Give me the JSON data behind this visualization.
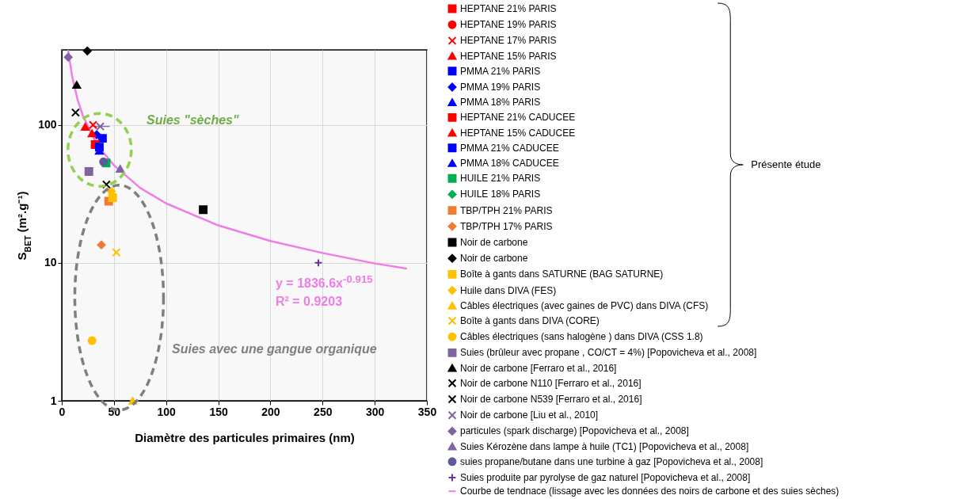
{
  "chart_data": {
    "type": "scatter",
    "xlabel": "Diamètre des particules primaires (nm)",
    "ylabel": "S$_{BET}$ (m².g⁻¹)",
    "xlim": [
      0,
      350
    ],
    "xticks": [
      0,
      50,
      100,
      150,
      200,
      250,
      300,
      350
    ],
    "ylim": [
      1,
      350
    ],
    "yticks": [
      1,
      10,
      100
    ],
    "log": "y",
    "grid": true,
    "legend": "right",
    "annotations": [
      "Suies \"sèches\"",
      "Suies avec une gangue organique",
      "y = 1836.6x$^{-0.915}$",
      "R² = 0.9203",
      "Présente étude"
    ],
    "series": [
      {
        "name": "HEPTANE 21% PARIS",
        "color": "#ff0000",
        "marker": "square",
        "x": [
          null
        ],
        "values": [
          null
        ]
      },
      {
        "name": "HEPTANE 19% PARIS",
        "color": "#ff0000",
        "marker": "circle",
        "x": [
          null
        ],
        "values": [
          null
        ]
      },
      {
        "name": "HEPTANE 17% PARIS",
        "color": "#ff0000",
        "marker": "cross",
        "x": [
          30
        ],
        "values": [
          100
        ]
      },
      {
        "name": "HEPTANE 15% PARIS",
        "color": "#ff0000",
        "marker": "triangle",
        "x": [
          22.5
        ],
        "values": [
          97
        ]
      },
      {
        "name": "PMMA 21% PARIS",
        "color": "#0000ff",
        "marker": "square",
        "x": [
          39
        ],
        "values": [
          80
        ]
      },
      {
        "name": "PMMA 19% PARIS",
        "color": "#0000ff",
        "marker": "diamond",
        "x": [
          33.5
        ],
        "values": [
          85
        ]
      },
      {
        "name": "PMMA 18% PARIS",
        "color": "#0000ff",
        "marker": "triangle",
        "x": [
          null
        ],
        "values": [
          null
        ]
      },
      {
        "name": "HEPTANE 21% CADUCEE",
        "color": "#ff0000",
        "marker": "square",
        "x": [
          32
        ],
        "values": [
          72
        ]
      },
      {
        "name": "HEPTANE 15% CADUCEE",
        "color": "#ff0000",
        "marker": "triangle",
        "x": [
          29
        ],
        "values": [
          87
        ]
      },
      {
        "name": "PMMA 21% CADUCEE",
        "color": "#0000ff",
        "marker": "square",
        "x": [
          36
        ],
        "values": [
          69
        ]
      },
      {
        "name": "PMMA 18% CADUCEE",
        "color": "#0000ff",
        "marker": "triangle",
        "x": [
          36
        ],
        "values": [
          65
        ]
      },
      {
        "name": "HUILE 21% PARIS",
        "color": "#00b050",
        "marker": "square",
        "x": [
          42.5
        ],
        "values": [
          53
        ]
      },
      {
        "name": "HUILE 18% PARIS",
        "color": "#00b050",
        "marker": "diamond",
        "x": [
          null
        ],
        "values": [
          null
        ]
      },
      {
        "name": "TBP/TPH 21% PARIS",
        "color": "#ed7d31",
        "marker": "square",
        "x": [
          45
        ],
        "values": [
          28
        ]
      },
      {
        "name": "TBP/TPH 17% PARIS",
        "color": "#ed7d31",
        "marker": "diamond",
        "x": [
          38
        ],
        "values": [
          13.5
        ]
      },
      {
        "name": "Noir de carbone",
        "color": "#000000",
        "marker": "square",
        "x": [
          135.6
        ],
        "values": [
          24.3
        ]
      },
      {
        "name": "Noir de carbone",
        "color": "#000000",
        "marker": "diamond",
        "x": [
          24.5
        ],
        "values": [
          344
        ]
      },
      {
        "name": "Boîte à gants dans SATURNE (BAG SATURNE)",
        "color": "#ffc000",
        "marker": "square",
        "x": [
          48.7
        ],
        "values": [
          29.7
        ]
      },
      {
        "name": "Huile dans DIVA (FES)",
        "color": "#ffc000",
        "marker": "diamond",
        "x": [
          47.5
        ],
        "values": [
          33
        ]
      },
      {
        "name": "Câbles électriques (avec gaines de PVC) dans DIVA (CFS)",
        "color": "#ffc000",
        "marker": "triangle",
        "x": [
          68
        ],
        "values": [
          1
        ]
      },
      {
        "name": "Boîte à gants dans DIVA (CORE)",
        "color": "#ffc000",
        "marker": "cross",
        "x": [
          52.3
        ],
        "values": [
          11.9
        ]
      },
      {
        "name": "Câbles électriques (sans halogène ) dans DIVA (CSS 1.8)",
        "color": "#ffc000",
        "marker": "circle",
        "x": [
          29
        ],
        "values": [
          2.73
        ]
      },
      {
        "name": "Suies (brûleur avec propane , CO/CT = 4%) [Popovicheva et al., 2008]",
        "color": "#8064a2",
        "marker": "square",
        "x": [
          26
        ],
        "values": [
          46
        ]
      },
      {
        "name": "Noir de carbone [Ferraro et al., 2016]",
        "color": "#000000",
        "marker": "triangle",
        "x": [
          14.3
        ],
        "values": [
          195
        ]
      },
      {
        "name": "Noir de carbone N110 [Ferraro et al., 2016]",
        "color": "#000000",
        "marker": "cross",
        "x": [
          13.2
        ],
        "values": [
          123
        ]
      },
      {
        "name": "Noir de carbone N539 [Ferraro et al., 2016]",
        "color": "#000000",
        "marker": "cross",
        "x": [
          42.8
        ],
        "values": [
          37
        ]
      },
      {
        "name": "Noir de carbone [Liu et al., 2010]",
        "color": "#8064a2",
        "marker": "cross",
        "x": [
          36.9
        ],
        "values": [
          97.5
        ],
        "xerrors": [
          [
            30,
            46
          ]
        ]
      },
      {
        "name": "particules (spark discharge) [Popovicheva et al., 2008]",
        "color": "#8064a2",
        "marker": "diamond",
        "x": [
          6.2
        ],
        "values": [
          310
        ]
      },
      {
        "name": "Suies Kérozène dans lampe à huile (TC1)  [Popovicheva et al., 2008]",
        "color": "#8064a2",
        "marker": "triangle",
        "x": [
          56
        ],
        "values": [
          48
        ]
      },
      {
        "name": "suies propane/butane dans une turbine à gaz [Popovicheva et al., 2008]",
        "color": "#5f5a9a",
        "marker": "circle",
        "x": [
          40
        ],
        "values": [
          54
        ]
      },
      {
        "name": "Suies produite par pyrolyse de gaz naturel [Popovicheva et al., 2008]",
        "color": "#7030a0",
        "marker": "plus",
        "x": [
          246
        ],
        "values": [
          10
        ]
      },
      {
        "name": "Courbe de tendnace (lissage avec les données des noirs de carbone et des suies sèches)",
        "color": "#f07ce6",
        "type": "line",
        "x": [
          6.2,
          10,
          15,
          20,
          30,
          40,
          50,
          75,
          100,
          150,
          200,
          250,
          300,
          330
        ],
        "values": [
          345,
          223,
          154,
          118,
          82,
          63,
          51,
          35,
          27,
          18.7,
          14.4,
          11.8,
          9.9,
          9.1
        ]
      }
    ]
  }
}
